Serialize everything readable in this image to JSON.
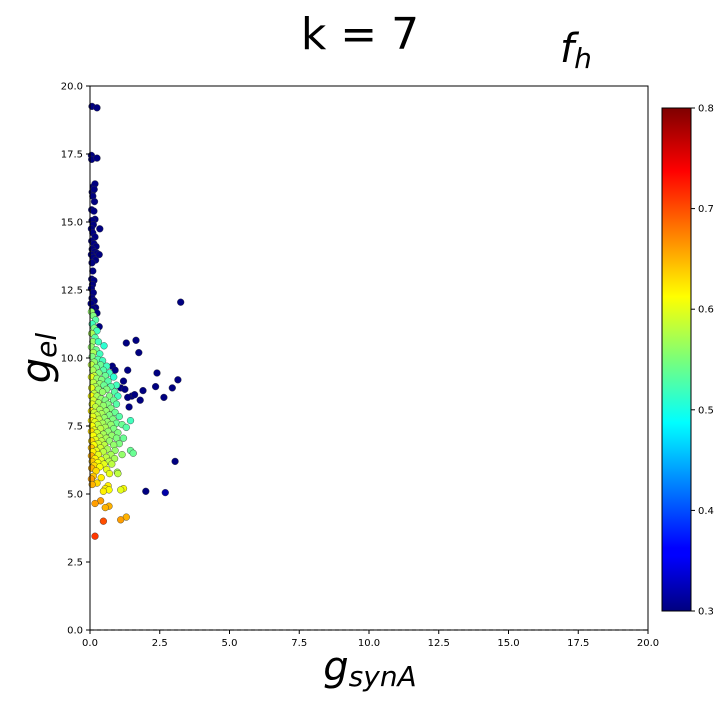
{
  "chart_data": {
    "type": "scatter",
    "title": "k = 7",
    "colorbar_label": {
      "main": "f",
      "sub": "h"
    },
    "xlabel": {
      "main": "g",
      "sub": "synA"
    },
    "ylabel": {
      "main": "g",
      "sub": "el"
    },
    "xlim": [
      0,
      20
    ],
    "ylim": [
      0,
      20
    ],
    "xticks": [
      "0.0",
      "2.5",
      "5.0",
      "7.5",
      "10.0",
      "12.5",
      "15.0",
      "17.5",
      "20.0"
    ],
    "yticks": [
      "0.0",
      "2.5",
      "5.0",
      "7.5",
      "10.0",
      "12.5",
      "15.0",
      "17.5",
      "20.0"
    ],
    "colorbar": {
      "colormap": "jet",
      "range": [
        0.3,
        0.8
      ],
      "ticks": [
        "0.3",
        "0.4",
        "0.5",
        "0.6",
        "0.7",
        "0.8"
      ]
    },
    "grid": false,
    "baseline_dashed_y": 0,
    "points": [
      [
        0.07,
        19.25,
        0.3
      ],
      [
        0.25,
        19.2,
        0.3
      ],
      [
        0.05,
        17.45,
        0.3
      ],
      [
        0.06,
        17.3,
        0.3
      ],
      [
        0.25,
        17.35,
        0.3
      ],
      [
        0.12,
        16.3,
        0.3
      ],
      [
        0.18,
        16.4,
        0.3
      ],
      [
        0.08,
        16.1,
        0.3
      ],
      [
        0.15,
        16.2,
        0.3
      ],
      [
        0.1,
        15.95,
        0.3
      ],
      [
        0.16,
        15.75,
        0.3
      ],
      [
        0.06,
        15.45,
        0.3
      ],
      [
        0.14,
        15.4,
        0.3
      ],
      [
        0.18,
        15.1,
        0.3
      ],
      [
        0.07,
        15.05,
        0.3
      ],
      [
        0.12,
        14.9,
        0.3
      ],
      [
        0.05,
        14.75,
        0.3
      ],
      [
        0.35,
        14.75,
        0.3
      ],
      [
        0.1,
        14.6,
        0.3
      ],
      [
        0.18,
        14.45,
        0.3
      ],
      [
        0.06,
        14.3,
        0.3
      ],
      [
        0.14,
        14.2,
        0.3
      ],
      [
        0.22,
        14.1,
        0.3
      ],
      [
        0.08,
        14.0,
        0.3
      ],
      [
        0.16,
        13.9,
        0.3
      ],
      [
        0.25,
        13.85,
        0.3
      ],
      [
        0.05,
        13.8,
        0.3
      ],
      [
        0.12,
        13.7,
        0.3
      ],
      [
        0.2,
        13.6,
        0.3
      ],
      [
        0.07,
        13.5,
        0.3
      ],
      [
        0.33,
        13.8,
        0.3
      ],
      [
        0.1,
        13.2,
        0.3
      ],
      [
        0.06,
        12.9,
        0.3
      ],
      [
        0.14,
        12.85,
        0.3
      ],
      [
        0.09,
        12.7,
        0.3
      ],
      [
        0.05,
        12.55,
        0.3
      ],
      [
        0.12,
        12.4,
        0.3
      ],
      [
        0.07,
        12.2,
        0.3
      ],
      [
        0.15,
        12.1,
        0.3
      ],
      [
        0.04,
        12.0,
        0.3
      ],
      [
        0.2,
        11.85,
        0.3
      ],
      [
        0.09,
        11.8,
        0.3
      ],
      [
        0.25,
        11.65,
        0.3
      ],
      [
        0.33,
        11.15,
        0.3
      ],
      [
        3.25,
        12.05,
        0.3
      ],
      [
        1.3,
        10.55,
        0.3
      ],
      [
        1.65,
        10.65,
        0.3
      ],
      [
        1.75,
        10.2,
        0.3
      ],
      [
        0.8,
        9.7,
        0.3
      ],
      [
        0.9,
        9.55,
        0.3
      ],
      [
        1.35,
        9.55,
        0.3
      ],
      [
        2.4,
        9.45,
        0.3
      ],
      [
        3.15,
        9.2,
        0.3
      ],
      [
        1.2,
        9.15,
        0.3
      ],
      [
        1.9,
        8.8,
        0.3
      ],
      [
        2.35,
        8.95,
        0.3
      ],
      [
        2.95,
        8.9,
        0.3
      ],
      [
        1.1,
        8.9,
        0.3
      ],
      [
        1.25,
        8.85,
        0.3
      ],
      [
        1.5,
        8.6,
        0.3
      ],
      [
        1.6,
        8.65,
        0.3
      ],
      [
        1.35,
        8.55,
        0.3
      ],
      [
        1.8,
        8.45,
        0.3
      ],
      [
        2.65,
        8.55,
        0.3
      ],
      [
        1.4,
        8.2,
        0.3
      ],
      [
        3.05,
        6.2,
        0.3
      ],
      [
        2.0,
        5.1,
        0.3
      ],
      [
        2.7,
        5.05,
        0.32
      ],
      [
        0.05,
        11.7,
        0.56
      ],
      [
        0.12,
        11.55,
        0.55
      ],
      [
        0.2,
        11.4,
        0.53
      ],
      [
        0.08,
        11.25,
        0.52
      ],
      [
        0.15,
        11.1,
        0.55
      ],
      [
        0.25,
        11.0,
        0.52
      ],
      [
        0.06,
        10.9,
        0.57
      ],
      [
        0.18,
        10.75,
        0.53
      ],
      [
        0.1,
        10.6,
        0.56
      ],
      [
        0.3,
        10.6,
        0.52
      ],
      [
        0.5,
        10.45,
        0.51
      ],
      [
        0.05,
        10.4,
        0.56
      ],
      [
        0.22,
        10.3,
        0.54
      ],
      [
        0.12,
        10.2,
        0.57
      ],
      [
        0.35,
        10.15,
        0.52
      ],
      [
        0.08,
        10.05,
        0.55
      ],
      [
        0.28,
        9.95,
        0.53
      ],
      [
        0.45,
        9.9,
        0.52
      ],
      [
        0.15,
        9.85,
        0.56
      ],
      [
        0.05,
        9.75,
        0.58
      ],
      [
        0.38,
        9.75,
        0.54
      ],
      [
        0.6,
        9.7,
        0.52
      ],
      [
        0.22,
        9.65,
        0.55
      ],
      [
        0.1,
        9.55,
        0.57
      ],
      [
        0.48,
        9.55,
        0.53
      ],
      [
        0.32,
        9.45,
        0.55
      ],
      [
        0.7,
        9.45,
        0.52
      ],
      [
        0.15,
        9.35,
        0.58
      ],
      [
        0.55,
        9.35,
        0.54
      ],
      [
        0.05,
        9.3,
        0.6
      ],
      [
        0.25,
        9.25,
        0.56
      ],
      [
        0.42,
        9.2,
        0.55
      ],
      [
        0.85,
        9.3,
        0.51
      ],
      [
        0.65,
        9.15,
        0.53
      ],
      [
        0.12,
        9.1,
        0.58
      ],
      [
        0.35,
        9.05,
        0.56
      ],
      [
        0.5,
        9.0,
        0.54
      ],
      [
        0.95,
        9.0,
        0.52
      ],
      [
        0.2,
        8.95,
        0.57
      ],
      [
        0.75,
        8.95,
        0.53
      ],
      [
        0.06,
        8.9,
        0.6
      ],
      [
        0.3,
        8.85,
        0.56
      ],
      [
        0.6,
        8.85,
        0.55
      ],
      [
        0.45,
        8.75,
        0.56
      ],
      [
        0.15,
        8.7,
        0.58
      ],
      [
        0.88,
        8.75,
        0.53
      ],
      [
        0.05,
        8.6,
        0.61
      ],
      [
        0.25,
        8.6,
        0.57
      ],
      [
        0.7,
        8.6,
        0.55
      ],
      [
        1.0,
        8.6,
        0.52
      ],
      [
        0.4,
        8.5,
        0.56
      ],
      [
        0.55,
        8.45,
        0.55
      ],
      [
        0.12,
        8.45,
        0.59
      ],
      [
        0.85,
        8.45,
        0.54
      ],
      [
        0.3,
        8.35,
        0.57
      ],
      [
        0.08,
        8.3,
        0.6
      ],
      [
        0.65,
        8.3,
        0.55
      ],
      [
        0.48,
        8.25,
        0.56
      ],
      [
        0.95,
        8.3,
        0.53
      ],
      [
        0.2,
        8.2,
        0.58
      ],
      [
        0.75,
        8.15,
        0.55
      ],
      [
        0.35,
        8.1,
        0.57
      ],
      [
        0.05,
        8.05,
        0.62
      ],
      [
        0.58,
        8.05,
        0.56
      ],
      [
        0.15,
        8.0,
        0.59
      ],
      [
        0.9,
        8.0,
        0.54
      ],
      [
        0.42,
        7.95,
        0.57
      ],
      [
        0.25,
        7.9,
        0.58
      ],
      [
        0.7,
        7.9,
        0.55
      ],
      [
        1.05,
        7.85,
        0.53
      ],
      [
        0.1,
        7.85,
        0.6
      ],
      [
        0.52,
        7.8,
        0.56
      ],
      [
        0.32,
        7.75,
        0.58
      ],
      [
        0.82,
        7.75,
        0.55
      ],
      [
        0.05,
        7.7,
        0.62
      ],
      [
        1.45,
        7.7,
        0.52
      ],
      [
        0.62,
        7.65,
        0.56
      ],
      [
        0.18,
        7.65,
        0.6
      ],
      [
        0.45,
        7.6,
        0.57
      ],
      [
        0.95,
        7.6,
        0.54
      ],
      [
        0.28,
        7.55,
        0.58
      ],
      [
        0.75,
        7.55,
        0.56
      ],
      [
        0.08,
        7.5,
        0.61
      ],
      [
        1.15,
        7.55,
        0.54
      ],
      [
        0.55,
        7.45,
        0.57
      ],
      [
        1.3,
        7.45,
        0.53
      ],
      [
        0.38,
        7.4,
        0.58
      ],
      [
        0.15,
        7.35,
        0.6
      ],
      [
        0.85,
        7.4,
        0.55
      ],
      [
        0.65,
        7.3,
        0.56
      ],
      [
        0.05,
        7.3,
        0.63
      ],
      [
        0.25,
        7.25,
        0.59
      ],
      [
        1.0,
        7.25,
        0.55
      ],
      [
        0.48,
        7.2,
        0.57
      ],
      [
        0.12,
        7.15,
        0.61
      ],
      [
        0.78,
        7.15,
        0.56
      ],
      [
        0.35,
        7.1,
        0.58
      ],
      [
        0.58,
        7.05,
        0.57
      ],
      [
        0.95,
        7.05,
        0.55
      ],
      [
        1.2,
        7.05,
        0.54
      ],
      [
        0.2,
        7.0,
        0.6
      ],
      [
        0.06,
        6.95,
        0.63
      ],
      [
        0.42,
        6.95,
        0.58
      ],
      [
        0.7,
        6.95,
        0.56
      ],
      [
        0.3,
        6.85,
        0.59
      ],
      [
        1.05,
        6.85,
        0.55
      ],
      [
        0.52,
        6.8,
        0.58
      ],
      [
        0.14,
        6.8,
        0.61
      ],
      [
        0.85,
        6.8,
        0.56
      ],
      [
        0.05,
        6.7,
        0.64
      ],
      [
        0.38,
        6.7,
        0.59
      ],
      [
        0.62,
        6.65,
        0.57
      ],
      [
        0.22,
        6.6,
        0.6
      ],
      [
        1.45,
        6.6,
        0.54
      ],
      [
        0.9,
        6.6,
        0.56
      ],
      [
        0.1,
        6.55,
        0.62
      ],
      [
        0.48,
        6.55,
        0.58
      ],
      [
        1.55,
        6.5,
        0.54
      ],
      [
        0.75,
        6.45,
        0.57
      ],
      [
        0.3,
        6.45,
        0.6
      ],
      [
        1.15,
        6.45,
        0.56
      ],
      [
        0.05,
        6.4,
        0.65
      ],
      [
        0.58,
        6.35,
        0.58
      ],
      [
        0.18,
        6.3,
        0.62
      ],
      [
        0.4,
        6.25,
        0.6
      ],
      [
        0.88,
        6.3,
        0.57
      ],
      [
        0.68,
        6.2,
        0.58
      ],
      [
        0.08,
        6.2,
        0.64
      ],
      [
        0.28,
        6.15,
        0.61
      ],
      [
        0.5,
        6.1,
        0.6
      ],
      [
        0.15,
        6.05,
        0.63
      ],
      [
        0.78,
        6.1,
        0.58
      ],
      [
        0.35,
        6.0,
        0.61
      ],
      [
        0.06,
        5.95,
        0.65
      ],
      [
        0.6,
        5.9,
        0.6
      ],
      [
        0.22,
        5.85,
        0.63
      ],
      [
        0.98,
        5.8,
        0.57
      ],
      [
        1.0,
        5.75,
        0.58
      ],
      [
        0.7,
        5.75,
        0.6
      ],
      [
        0.12,
        5.65,
        0.64
      ],
      [
        0.4,
        5.6,
        0.62
      ],
      [
        0.05,
        5.55,
        0.66
      ],
      [
        0.25,
        5.4,
        0.63
      ],
      [
        0.08,
        5.35,
        0.65
      ],
      [
        0.65,
        5.3,
        0.62
      ],
      [
        0.55,
        5.2,
        0.62
      ],
      [
        0.68,
        5.15,
        0.61
      ],
      [
        1.2,
        5.2,
        0.61
      ],
      [
        1.1,
        5.15,
        0.6
      ],
      [
        0.48,
        5.1,
        0.62
      ],
      [
        0.38,
        4.75,
        0.66
      ],
      [
        0.18,
        4.65,
        0.66
      ],
      [
        0.68,
        4.55,
        0.65
      ],
      [
        0.55,
        4.5,
        0.65
      ],
      [
        1.3,
        4.15,
        0.65
      ],
      [
        1.1,
        4.05,
        0.66
      ],
      [
        0.48,
        4.0,
        0.7
      ],
      [
        0.18,
        3.45,
        0.71
      ]
    ]
  }
}
